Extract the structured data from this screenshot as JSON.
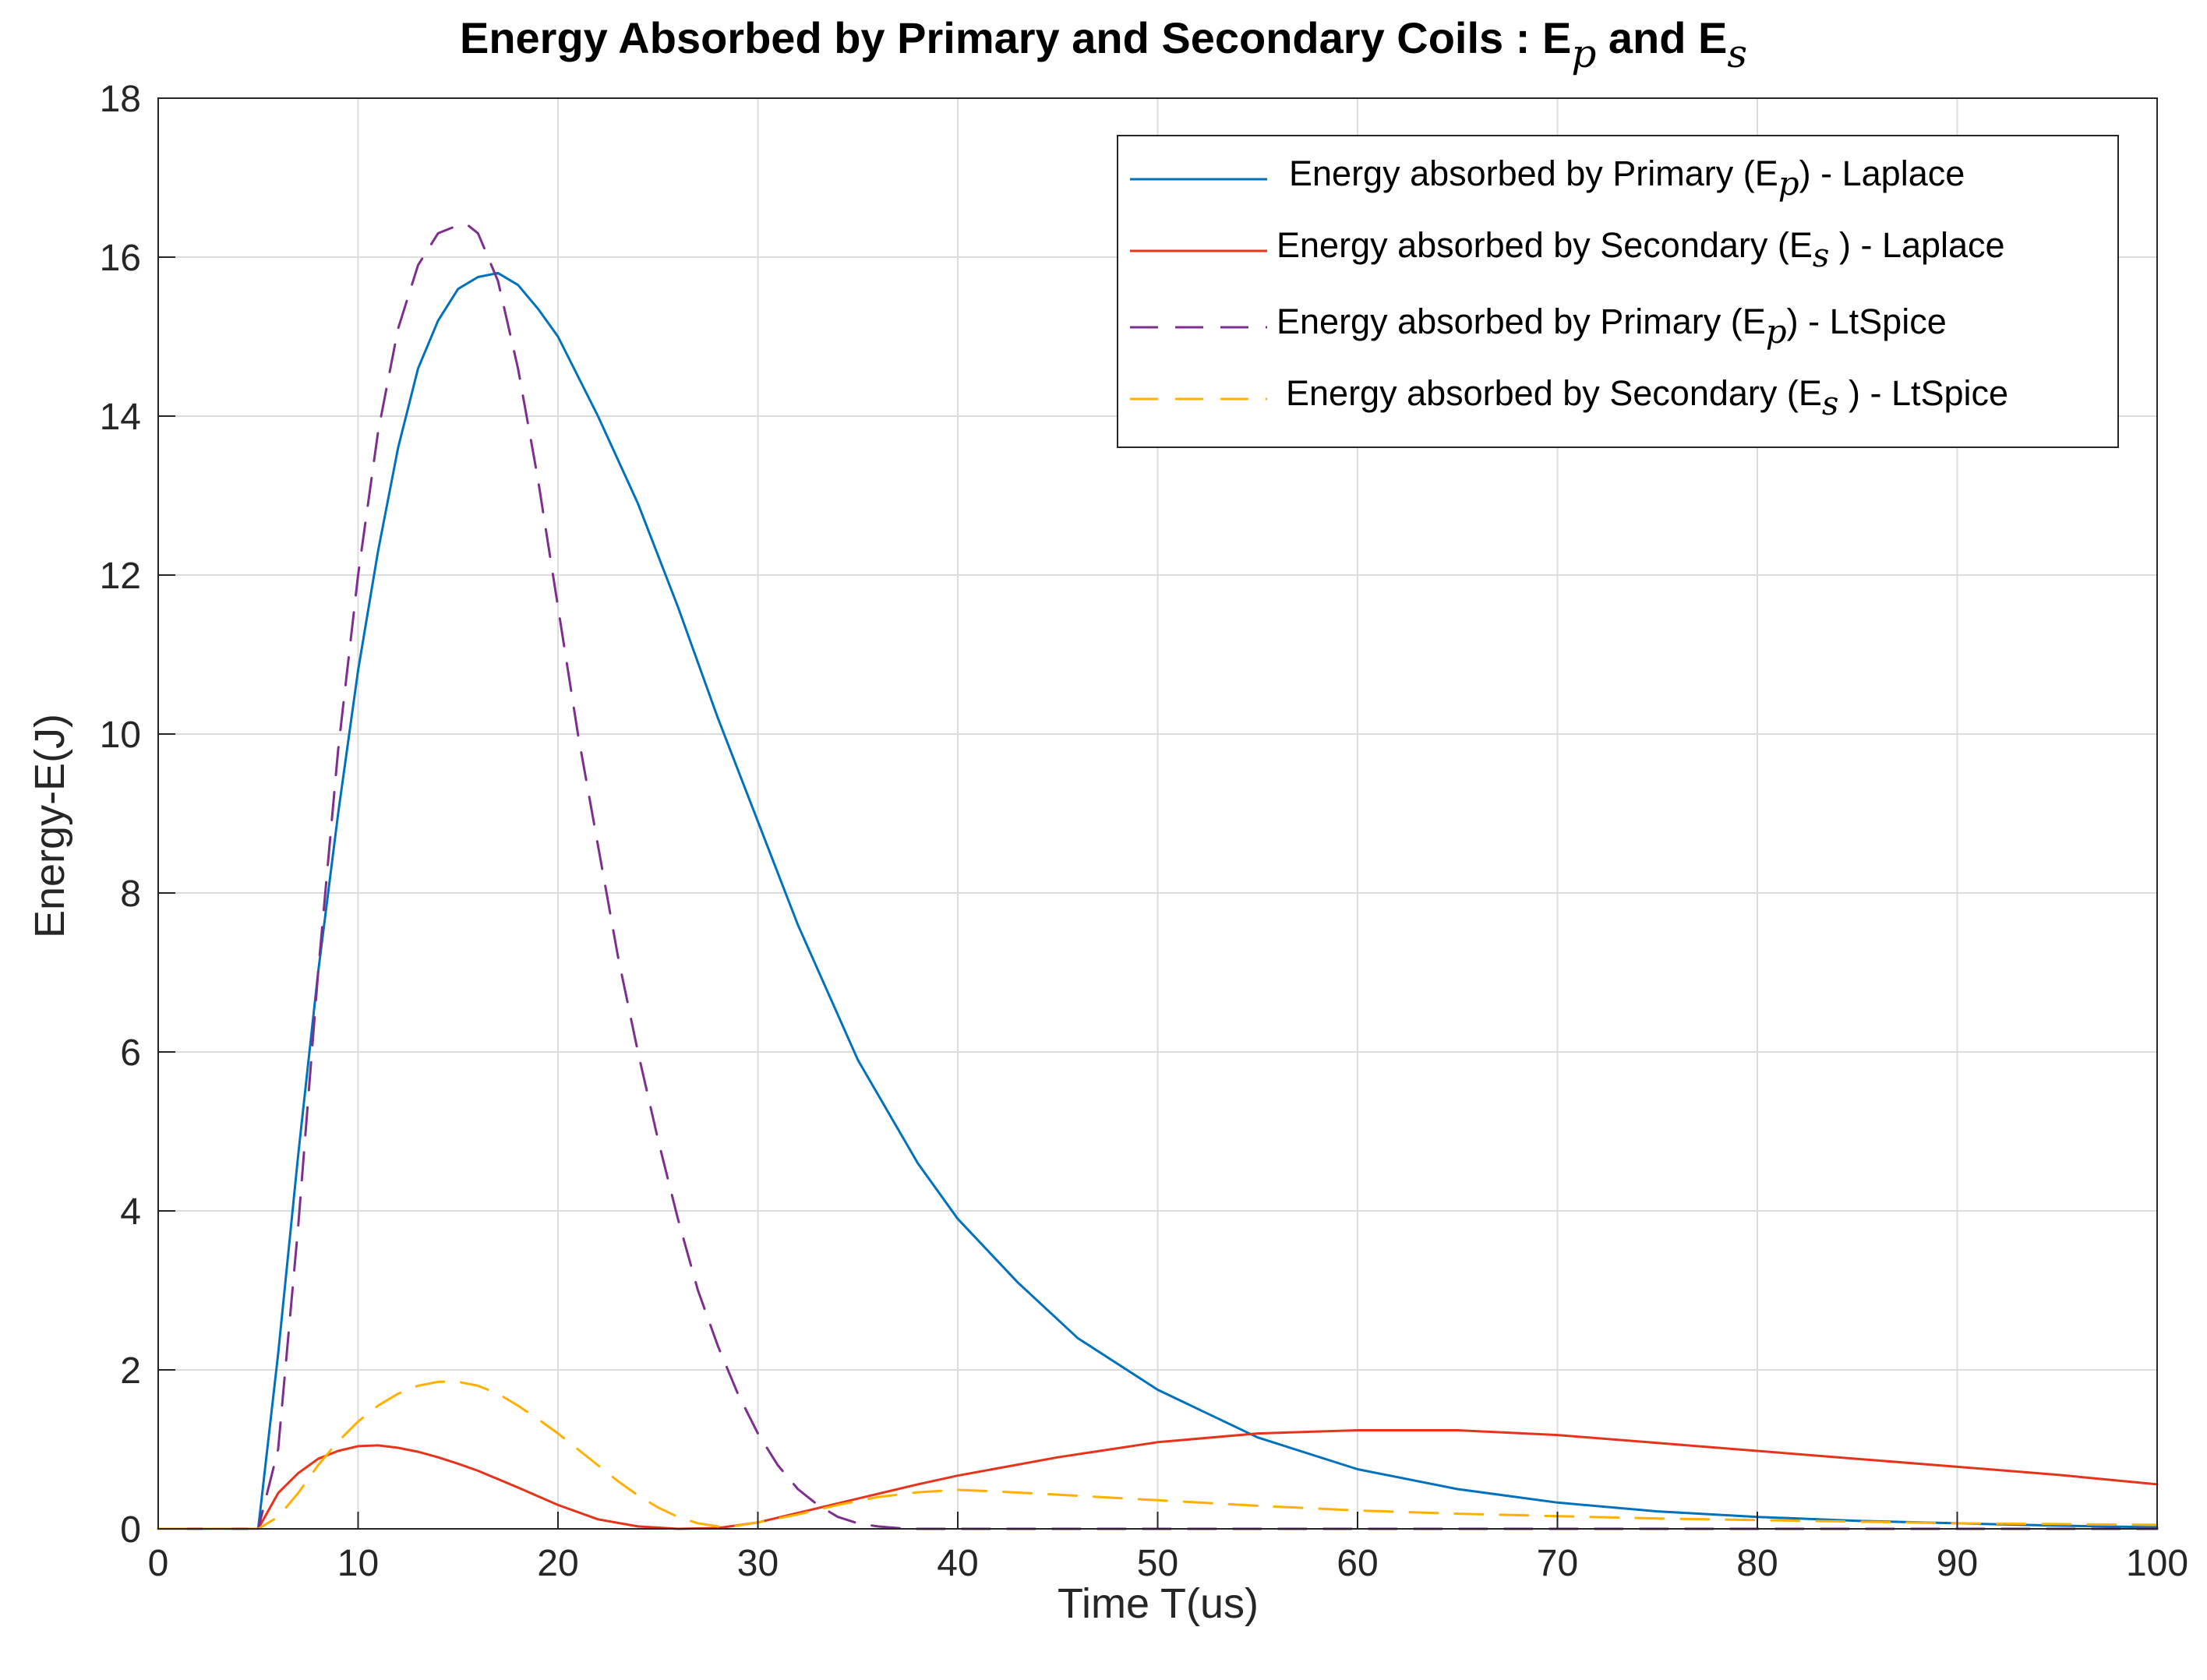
{
  "chart_data": {
    "type": "line",
    "title": {
      "main": "Energy Absorbed by Primary and Secondary Coils : E",
      "sub1": "p",
      "mid": " and E",
      "sub2": "s"
    },
    "xlabel": "Time T(us)",
    "ylabel": "Energy-E(J)",
    "xlim": [
      0,
      100
    ],
    "ylim": [
      0,
      18
    ],
    "xticks": [
      0,
      10,
      20,
      30,
      40,
      50,
      60,
      70,
      80,
      90,
      100
    ],
    "yticks": [
      0,
      2,
      4,
      6,
      8,
      10,
      12,
      14,
      16,
      18
    ],
    "grid": true,
    "legend_position": "top-right",
    "series": [
      {
        "name": "Energy absorbed by Primary (Ep) - Laplace",
        "legend": {
          "pre": "Energy absorbed by Primary (E",
          "sub": "p",
          "post": ") - Laplace"
        },
        "color": "#0072BD",
        "dash": "solid",
        "x": [
          0,
          5,
          6,
          7,
          8,
          9,
          10,
          11,
          12,
          13,
          14,
          15,
          16,
          17,
          18,
          19,
          20,
          22,
          24,
          26,
          28,
          30,
          32,
          35,
          38,
          40,
          43,
          46,
          50,
          55,
          60,
          65,
          70,
          75,
          80,
          85,
          90,
          95,
          100
        ],
        "y": [
          0,
          0,
          2.2,
          4.7,
          7.0,
          9.0,
          10.8,
          12.3,
          13.6,
          14.6,
          15.2,
          15.6,
          15.75,
          15.8,
          15.65,
          15.35,
          15.0,
          14.0,
          12.9,
          11.6,
          10.2,
          8.9,
          7.6,
          5.9,
          4.6,
          3.9,
          3.1,
          2.4,
          1.75,
          1.15,
          0.75,
          0.5,
          0.33,
          0.22,
          0.15,
          0.1,
          0.07,
          0.04,
          0.02
        ]
      },
      {
        "name": "Energy absorbed by Secondary (Es) - Laplace",
        "legend": {
          "pre": "Energy absorbed by Secondary (E",
          "sub": "s",
          "post": " ) - Laplace"
        },
        "color": "#E8331B",
        "dash": "solid",
        "x": [
          0,
          5,
          6,
          7,
          8,
          9,
          10,
          11,
          12,
          13,
          14,
          15,
          16,
          18,
          20,
          22,
          24,
          26,
          28,
          30,
          32,
          35,
          38,
          40,
          45,
          50,
          55,
          60,
          65,
          70,
          75,
          80,
          85,
          90,
          95,
          100
        ],
        "y": [
          0,
          0,
          0.45,
          0.7,
          0.88,
          0.98,
          1.04,
          1.05,
          1.02,
          0.97,
          0.9,
          0.82,
          0.73,
          0.52,
          0.3,
          0.12,
          0.03,
          0.0,
          0.01,
          0.08,
          0.2,
          0.38,
          0.56,
          0.67,
          0.9,
          1.09,
          1.2,
          1.24,
          1.24,
          1.18,
          1.08,
          0.98,
          0.88,
          0.78,
          0.68,
          0.56
        ]
      },
      {
        "name": "Energy absorbed by Primary (Ep) - LtSpice",
        "legend": {
          "pre": "Energy absorbed by Primary (E",
          "sub": "p",
          "post": ") - LtSpice"
        },
        "color": "#7E2F8E",
        "dash": "dashed",
        "x": [
          0,
          5,
          6,
          7,
          8,
          9,
          10,
          11,
          12,
          13,
          14,
          15,
          15.5,
          16,
          17,
          18,
          19,
          20,
          21,
          22,
          23,
          24,
          25,
          26,
          27,
          28,
          29,
          30,
          31,
          32,
          33,
          34,
          35,
          36,
          37,
          38,
          40,
          50,
          60,
          70,
          80,
          90,
          100
        ],
        "y": [
          0,
          0,
          1.0,
          3.8,
          7.0,
          9.8,
          12.0,
          13.8,
          15.1,
          15.9,
          16.3,
          16.4,
          16.4,
          16.3,
          15.7,
          14.6,
          13.2,
          11.6,
          10.0,
          8.6,
          7.2,
          6.0,
          4.9,
          3.9,
          3.0,
          2.3,
          1.7,
          1.2,
          0.8,
          0.5,
          0.3,
          0.15,
          0.07,
          0.03,
          0.01,
          0.0,
          0.0,
          0.0,
          0.0,
          0.0,
          0.0,
          0.0,
          0.0
        ]
      },
      {
        "name": "Energy absorbed by Secondary (Es) - LtSpice",
        "legend": {
          "pre": "Energy absorbed by Secondary (E",
          "sub": "s",
          "post": " ) - LtSpice"
        },
        "color": "#FFB000",
        "dash": "dashed",
        "x": [
          0,
          5,
          6,
          7,
          8,
          9,
          10,
          11,
          12,
          13,
          14,
          15,
          16,
          17,
          18,
          19,
          20,
          21,
          22,
          23,
          24,
          25,
          26,
          27,
          28,
          29,
          30,
          32,
          34,
          36,
          38,
          40,
          42,
          45,
          50,
          55,
          60,
          65,
          70,
          75,
          80,
          85,
          90,
          95,
          100
        ],
        "y": [
          0,
          0,
          0.15,
          0.45,
          0.8,
          1.1,
          1.35,
          1.55,
          1.7,
          1.8,
          1.85,
          1.85,
          1.8,
          1.7,
          1.55,
          1.38,
          1.2,
          1.0,
          0.8,
          0.6,
          0.42,
          0.27,
          0.15,
          0.07,
          0.03,
          0.04,
          0.08,
          0.18,
          0.3,
          0.4,
          0.46,
          0.49,
          0.47,
          0.43,
          0.36,
          0.29,
          0.23,
          0.19,
          0.16,
          0.13,
          0.11,
          0.09,
          0.07,
          0.06,
          0.05
        ]
      }
    ]
  }
}
